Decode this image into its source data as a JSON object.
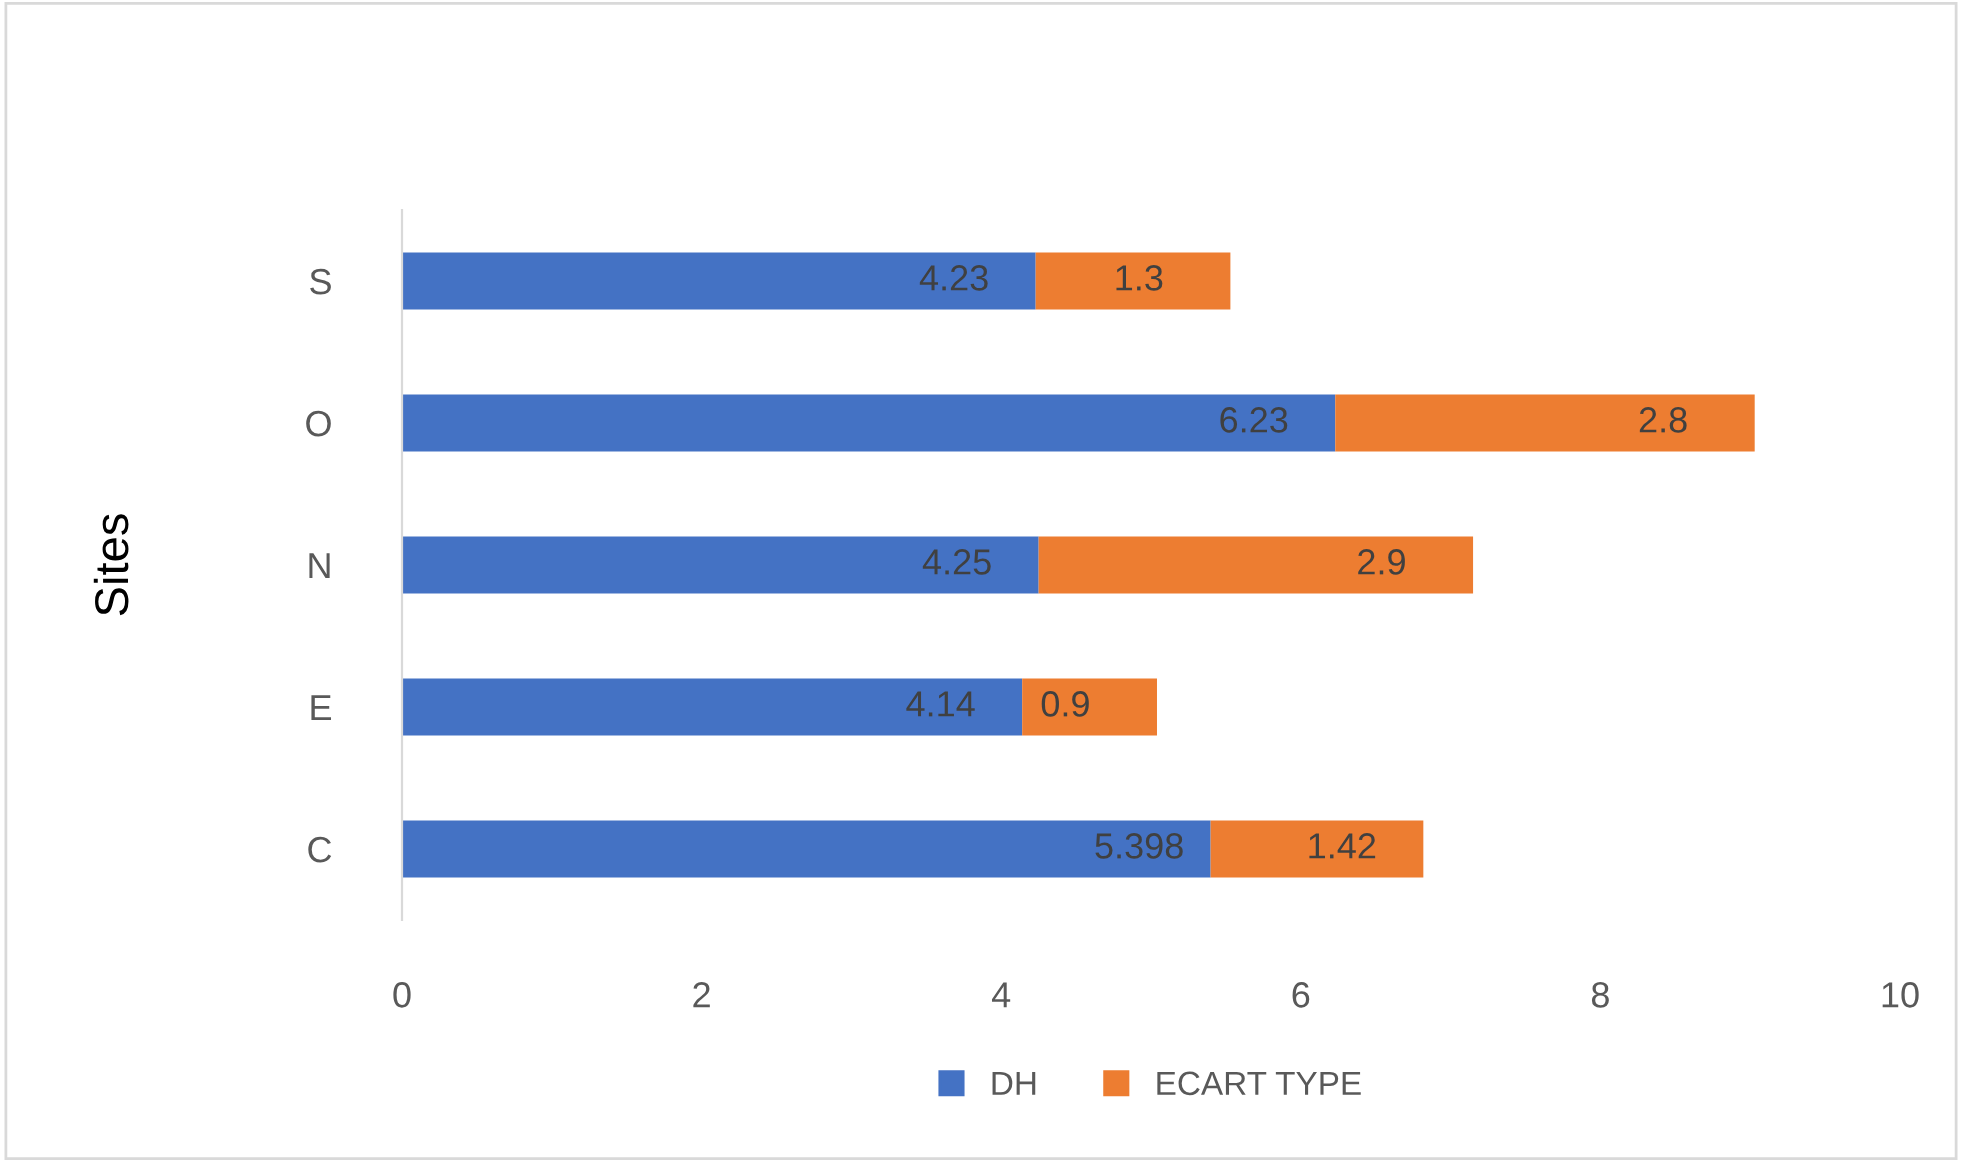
{
  "chart_data": {
    "type": "bar",
    "orientation": "horizontal",
    "stacked": true,
    "ylabel": "Sites",
    "categories": [
      "S",
      "O",
      "N",
      "E",
      "C"
    ],
    "series": [
      {
        "name": "DH",
        "color": "#4472c4",
        "values": [
          4.23,
          6.23,
          4.25,
          4.14,
          5.398
        ]
      },
      {
        "name": "ECART TYPE",
        "color": "#ed7d31",
        "values": [
          1.3,
          2.8,
          2.9,
          0.9,
          1.42
        ]
      }
    ],
    "xlim": [
      0,
      10
    ],
    "xticks": [
      0,
      2,
      4,
      6,
      8,
      10
    ],
    "grid": false,
    "legend": "bottom",
    "data_labels": true
  }
}
